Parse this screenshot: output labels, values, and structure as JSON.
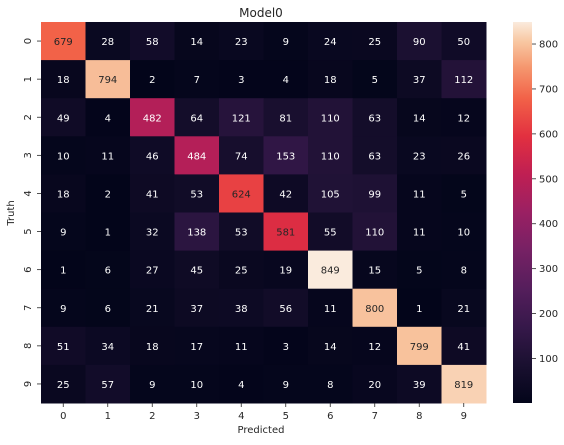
{
  "chart_data": {
    "type": "heatmap",
    "title": "Model0",
    "xlabel": "Predicted",
    "ylabel": "Truth",
    "x_categories": [
      "0",
      "1",
      "2",
      "3",
      "4",
      "5",
      "6",
      "7",
      "8",
      "9"
    ],
    "y_categories": [
      "0",
      "1",
      "2",
      "3",
      "4",
      "5",
      "6",
      "7",
      "8",
      "9"
    ],
    "values": [
      [
        679,
        28,
        58,
        14,
        23,
        9,
        24,
        25,
        90,
        50
      ],
      [
        18,
        794,
        2,
        7,
        3,
        4,
        18,
        5,
        37,
        112
      ],
      [
        49,
        4,
        482,
        64,
        121,
        81,
        110,
        63,
        14,
        12
      ],
      [
        10,
        11,
        46,
        484,
        74,
        153,
        110,
        63,
        23,
        26
      ],
      [
        18,
        2,
        41,
        53,
        624,
        42,
        105,
        99,
        11,
        5
      ],
      [
        9,
        1,
        32,
        138,
        53,
        581,
        55,
        110,
        11,
        10
      ],
      [
        1,
        6,
        27,
        45,
        25,
        19,
        849,
        15,
        5,
        8
      ],
      [
        9,
        6,
        21,
        37,
        38,
        56,
        11,
        800,
        1,
        21
      ],
      [
        51,
        34,
        18,
        17,
        11,
        3,
        14,
        12,
        799,
        41
      ],
      [
        25,
        57,
        9,
        10,
        4,
        9,
        8,
        20,
        39,
        819
      ]
    ],
    "colorbar": {
      "ticks": [
        100,
        200,
        300,
        400,
        500,
        600,
        700,
        800
      ],
      "range": [
        1,
        849
      ],
      "colormap": "rocket"
    },
    "grid": false,
    "legend": "colorbar-right"
  }
}
